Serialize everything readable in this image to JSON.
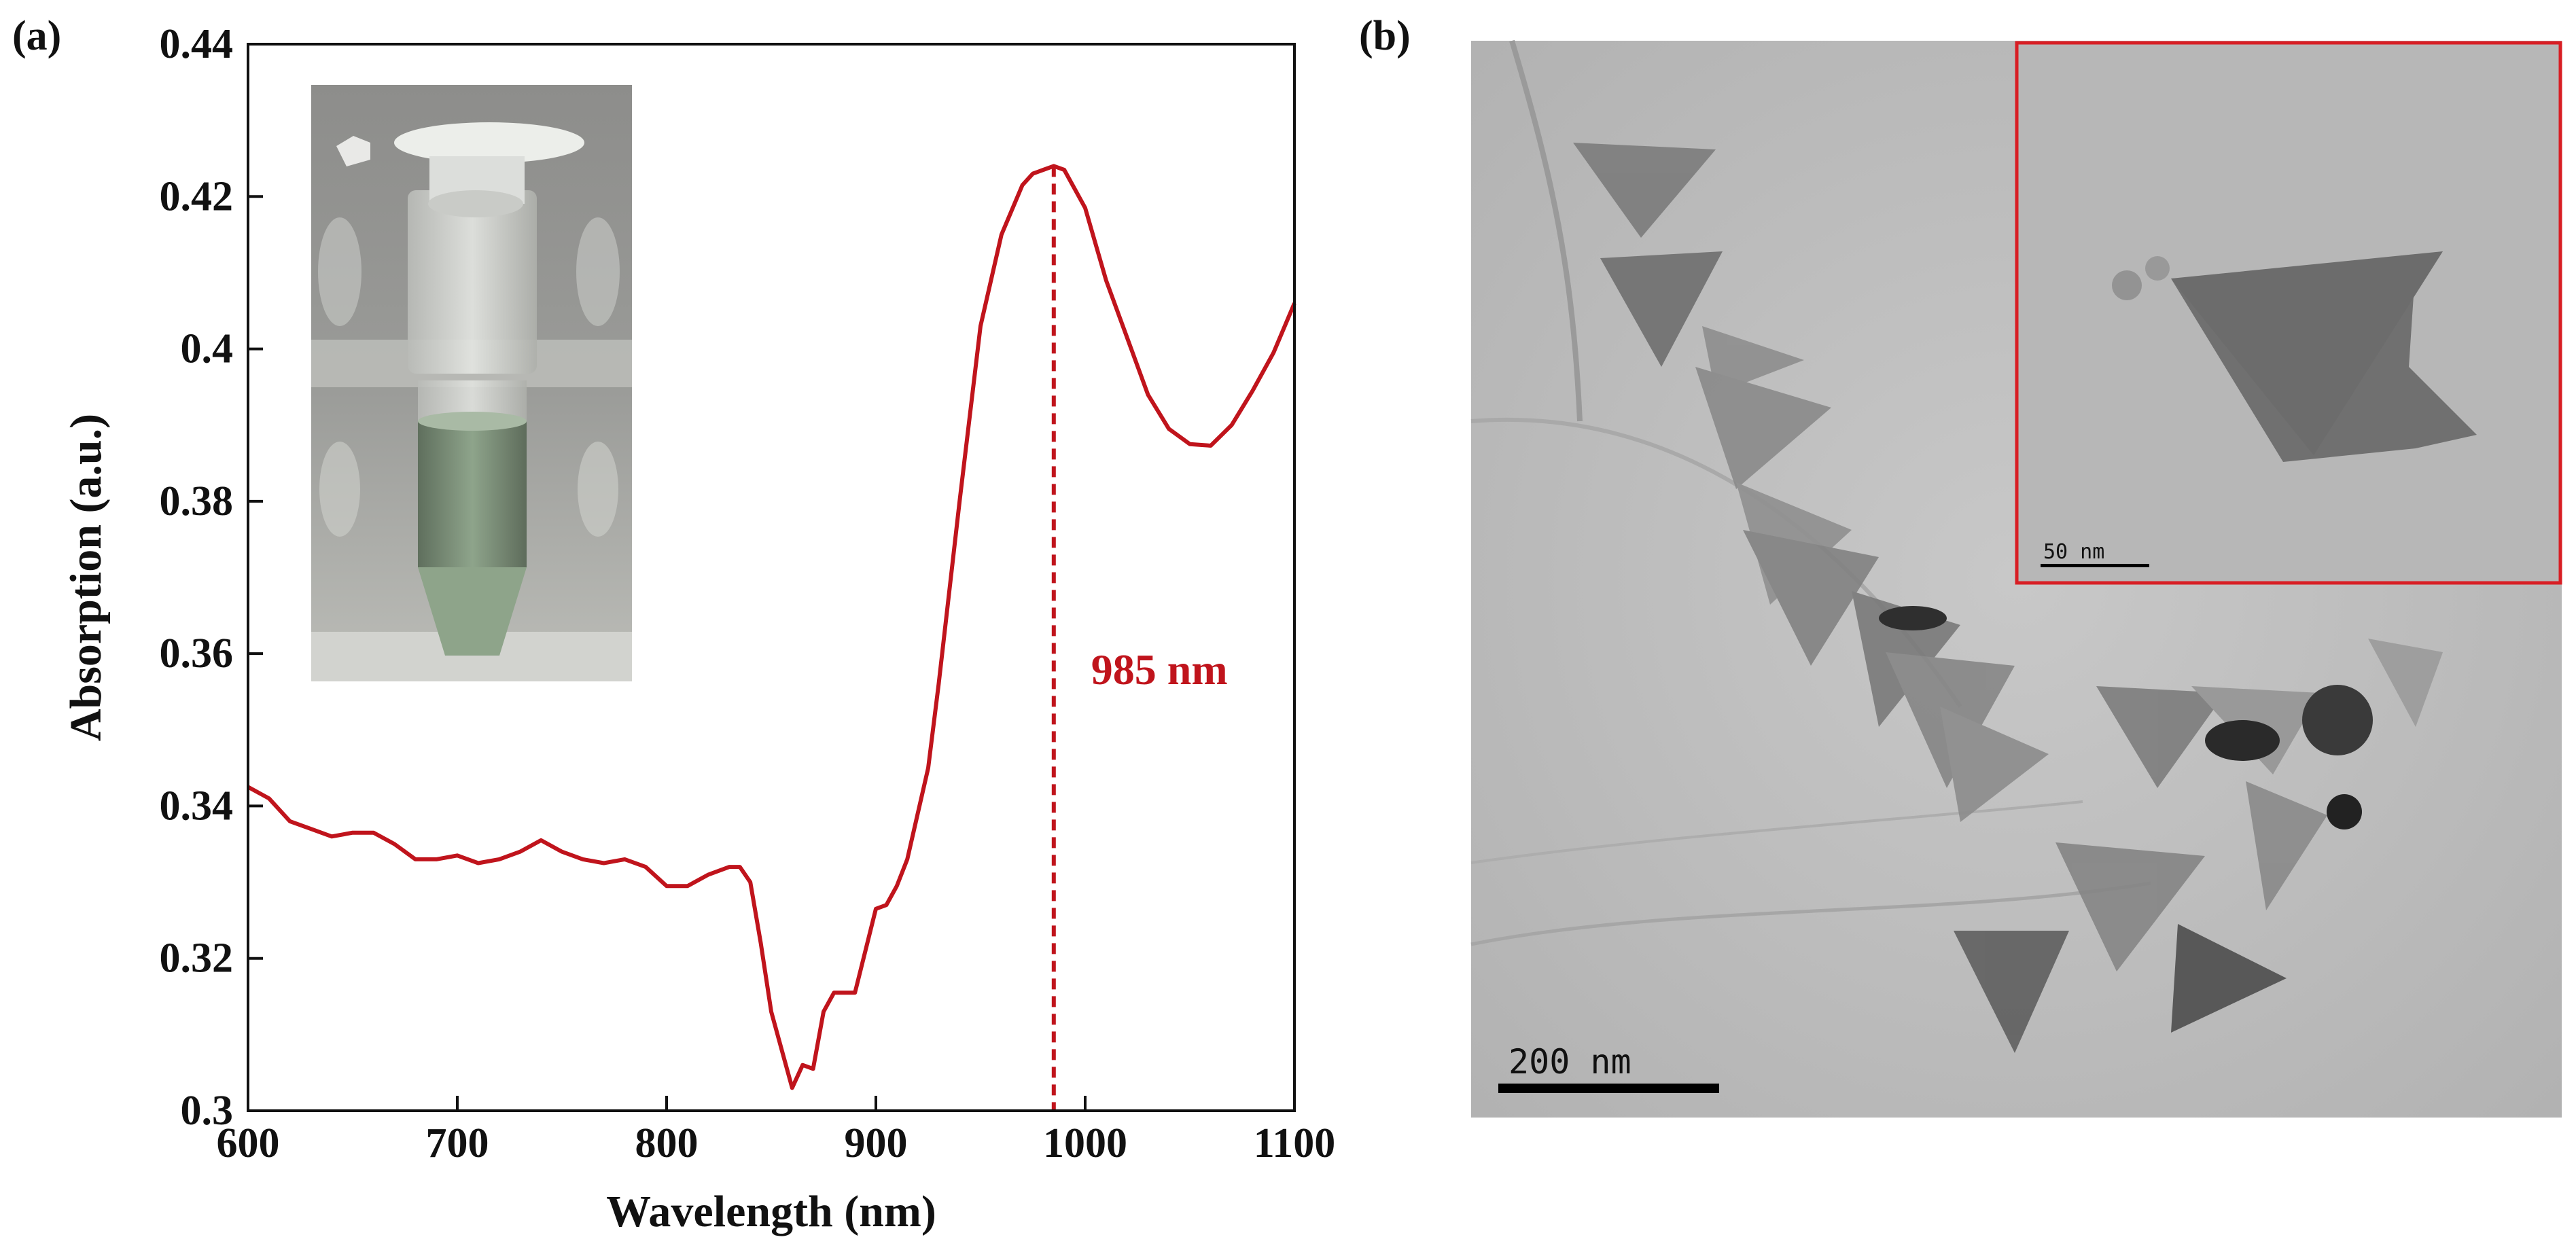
{
  "panel_a_label": "(a)",
  "panel_b_label": "(b)",
  "chart_data": {
    "type": "line",
    "xlabel": "Wavelength (nm)",
    "ylabel": "Absorption (a.u.)",
    "xlim": [
      600,
      1100
    ],
    "ylim": [
      0.3,
      0.44
    ],
    "xticks": [
      600,
      700,
      800,
      900,
      1000,
      1100
    ],
    "yticks": [
      0.3,
      0.32,
      0.34,
      0.36,
      0.38,
      0.4,
      0.42,
      0.44
    ],
    "ytick_labels": [
      "0.3",
      "0.32",
      "0.34",
      "0.36",
      "0.38",
      "0.4",
      "0.42",
      "0.44"
    ],
    "grid": false,
    "series": [
      {
        "name": "absorption",
        "color": "#c0141c",
        "x": [
          600,
          610,
          620,
          630,
          640,
          650,
          660,
          670,
          680,
          690,
          700,
          710,
          720,
          730,
          740,
          750,
          760,
          770,
          780,
          790,
          800,
          810,
          820,
          830,
          835,
          840,
          845,
          850,
          855,
          860,
          865,
          870,
          875,
          880,
          885,
          890,
          895,
          900,
          905,
          910,
          915,
          920,
          925,
          930,
          940,
          950,
          960,
          970,
          975,
          980,
          985,
          990,
          1000,
          1010,
          1020,
          1030,
          1040,
          1050,
          1060,
          1070,
          1080,
          1090,
          1100
        ],
        "y": [
          0.3425,
          0.341,
          0.338,
          0.337,
          0.336,
          0.3365,
          0.3365,
          0.335,
          0.333,
          0.333,
          0.3335,
          0.3325,
          0.333,
          0.334,
          0.3355,
          0.334,
          0.333,
          0.3325,
          0.333,
          0.332,
          0.3295,
          0.3295,
          0.331,
          0.332,
          0.332,
          0.33,
          0.322,
          0.313,
          0.308,
          0.303,
          0.306,
          0.3055,
          0.313,
          0.3155,
          0.3155,
          0.3155,
          0.321,
          0.3265,
          0.327,
          0.3295,
          0.333,
          0.339,
          0.345,
          0.356,
          0.38,
          0.403,
          0.415,
          0.4215,
          0.423,
          0.4235,
          0.424,
          0.4235,
          0.4185,
          0.409,
          0.4015,
          0.394,
          0.3895,
          0.3875,
          0.3873,
          0.39,
          0.3945,
          0.3995,
          0.406
        ]
      }
    ],
    "annotation": {
      "x": 985,
      "label": "985 nm",
      "style": "dashed vertical line",
      "color": "#c0141c"
    },
    "inset": "photo of microcentrifuge tube containing pale green nanoparticle solution"
  },
  "tem": {
    "main_scale_label": "200 nm",
    "inset_scale_label": "50 nm",
    "inset_border_color": "#d81e24",
    "description": "TEM micrograph of triangular nanoplates"
  }
}
